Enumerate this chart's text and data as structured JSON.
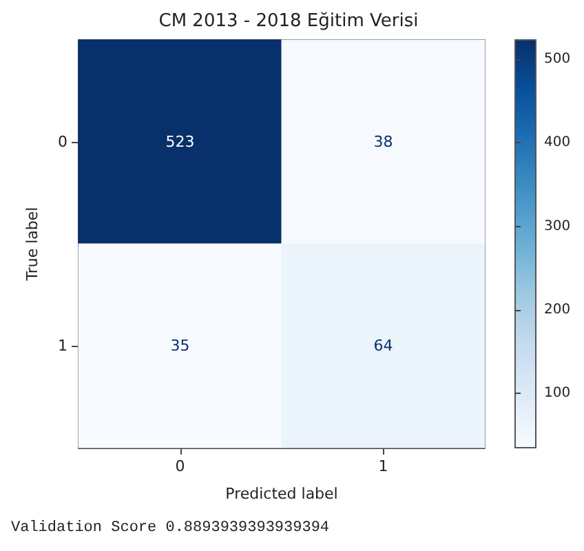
{
  "chart_data": {
    "type": "heatmap",
    "title": "CM 2013 - 2018 Eğitim Verisi",
    "xlabel": "Predicted label",
    "ylabel": "True label",
    "categories": [
      "0",
      "1"
    ],
    "y_categories": [
      "0",
      "1"
    ],
    "cells": [
      [
        523,
        38
      ],
      [
        35,
        64
      ]
    ],
    "clim": [
      35,
      523
    ],
    "cticks": [
      100,
      200,
      300,
      400,
      500
    ],
    "data_labels": true,
    "grid": false,
    "annotations": [
      "Validation Score 0.8893939393939394"
    ]
  }
}
